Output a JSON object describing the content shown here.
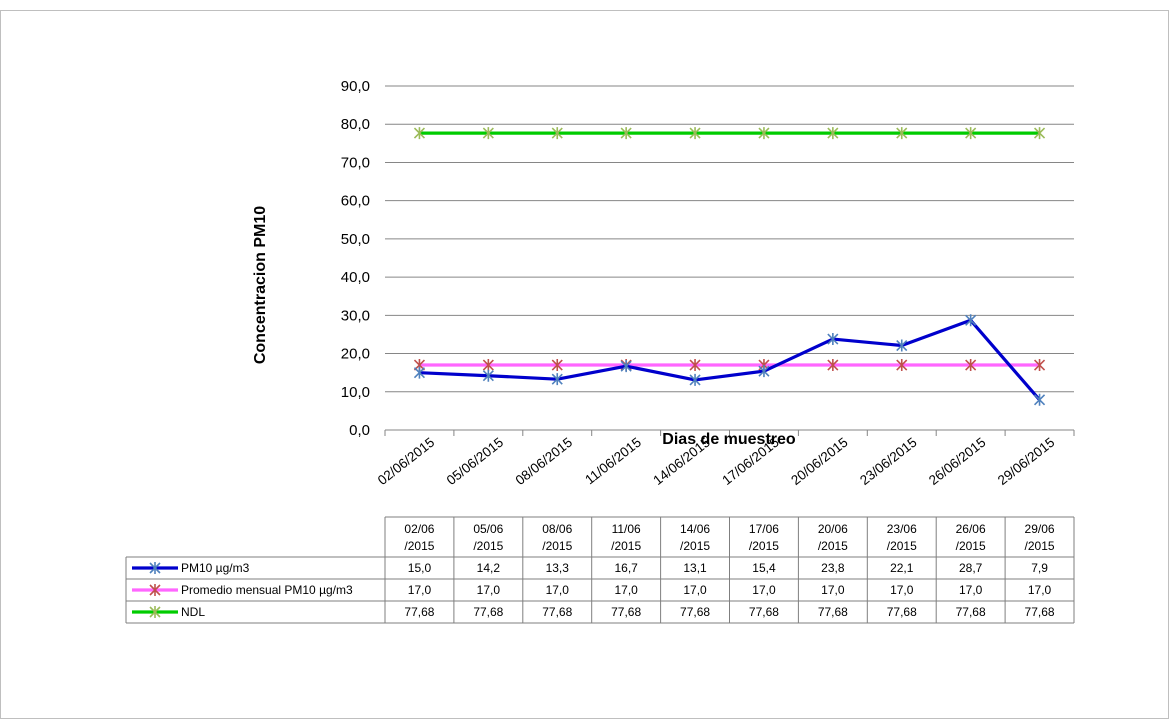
{
  "chart_data": {
    "type": "line",
    "xlabel": "Dias de muestreo",
    "ylabel": "Concentracion  PM10",
    "ylim": [
      0,
      90
    ],
    "y_ticks": [
      "0,0",
      "10,0",
      "20,0",
      "30,0",
      "40,0",
      "50,0",
      "60,0",
      "70,0",
      "80,0",
      "90,0"
    ],
    "grid": true,
    "categories": [
      "02/06/2015",
      "05/06/2015",
      "08/06/2015",
      "11/06/2015",
      "14/06/2015",
      "17/06/2015",
      "20/06/2015",
      "23/06/2015",
      "26/06/2015",
      "29/06/2015"
    ],
    "table_headers": [
      [
        "02/06",
        "/2015"
      ],
      [
        "05/06",
        "/2015"
      ],
      [
        "08/06",
        "/2015"
      ],
      [
        "11/06",
        "/2015"
      ],
      [
        "14/06",
        "/2015"
      ],
      [
        "17/06",
        "/2015"
      ],
      [
        "20/06",
        "/2015"
      ],
      [
        "23/06",
        "/2015"
      ],
      [
        "26/06",
        "/2015"
      ],
      [
        "29/06",
        "/2015"
      ]
    ],
    "series": [
      {
        "name": "PM10 µg/m3",
        "line_color": "#0000cc",
        "marker_color": "#4f81bd",
        "values": [
          15.0,
          14.2,
          13.3,
          16.7,
          13.1,
          15.4,
          23.8,
          22.1,
          28.7,
          7.9
        ],
        "labels": [
          "15,0",
          "14,2",
          "13,3",
          "16,7",
          "13,1",
          "15,4",
          "23,8",
          "22,1",
          "28,7",
          "7,9"
        ]
      },
      {
        "name": "Promedio mensual PM10 µg/m3",
        "line_color": "#ff66ff",
        "marker_color": "#c0504d",
        "values": [
          17.0,
          17.0,
          17.0,
          17.0,
          17.0,
          17.0,
          17.0,
          17.0,
          17.0,
          17.0
        ],
        "labels": [
          "17,0",
          "17,0",
          "17,0",
          "17,0",
          "17,0",
          "17,0",
          "17,0",
          "17,0",
          "17,0",
          "17,0"
        ]
      },
      {
        "name": "NDL",
        "line_color": "#00cc00",
        "marker_color": "#9bbb59",
        "values": [
          77.68,
          77.68,
          77.68,
          77.68,
          77.68,
          77.68,
          77.68,
          77.68,
          77.68,
          77.68
        ],
        "labels": [
          "77,68",
          "77,68",
          "77,68",
          "77,68",
          "77,68",
          "77,68",
          "77,68",
          "77,68",
          "77,68",
          "77,68"
        ]
      }
    ]
  }
}
